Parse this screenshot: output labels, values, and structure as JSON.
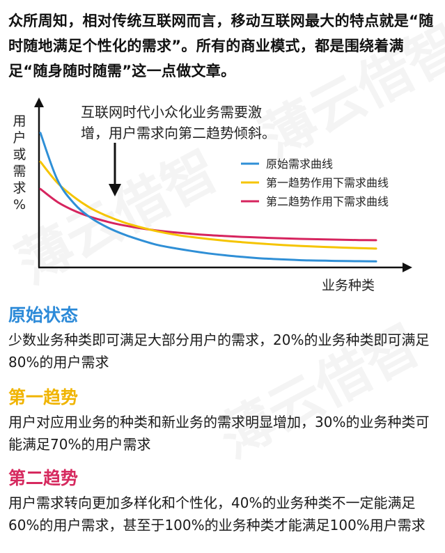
{
  "intro": "众所周知，相对传统互联网而言，移动互联网最大的特点就是“随时随地满足个性化的需求”。所有的商业模式，都是围绕着满足“随身随时随需”这一点做文章。",
  "watermark": "薄云借智",
  "chart_data": {
    "type": "line",
    "title": "",
    "ylabel": "用户或需求%",
    "xlabel": "业务种类",
    "legend_position": "right",
    "annotation": [
      "互联网时代小众化业务需要激",
      "增，用户需求向第二趋势倾斜。"
    ],
    "xlim": [
      0,
      100
    ],
    "ylim": [
      0,
      100
    ],
    "grid": false,
    "x": [
      0,
      5,
      10,
      15,
      20,
      25,
      30,
      35,
      40,
      45,
      50,
      55,
      60,
      65,
      70,
      75,
      80,
      85,
      90,
      95,
      100
    ],
    "series": [
      {
        "name": "原始需求曲线",
        "color": "#2f8fd6",
        "values": [
          84,
          55,
          40,
          31,
          25,
          20.5,
          17,
          14,
          12,
          10.3,
          8.8,
          7.6,
          6.6,
          5.8,
          5.2,
          4.8,
          4.4,
          4.2,
          4.0,
          3.9,
          3.8
        ]
      },
      {
        "name": "第一趋势作用下需求曲线",
        "color": "#f5c400",
        "values": [
          66,
          53,
          44,
          37,
          32,
          28,
          25,
          22.5,
          20.5,
          19,
          17.8,
          16.7,
          15.8,
          15,
          14.3,
          13.7,
          13.2,
          12.8,
          12.4,
          12.1,
          11.8
        ]
      },
      {
        "name": "第二趋势作用下需求曲线",
        "color": "#d6245e",
        "values": [
          49,
          41,
          35.5,
          31.5,
          28.5,
          26.2,
          24.4,
          23,
          21.9,
          21,
          20.2,
          19.6,
          19.1,
          18.7,
          18.3,
          18,
          17.7,
          17.5,
          17.3,
          17.1,
          17
        ]
      }
    ]
  },
  "sections": [
    {
      "title": "原始状态",
      "color": "#2c8ad8",
      "body": "少数业务种类即可满足大部分用户的需求，20%的业务种类即可满足80%的用户需求"
    },
    {
      "title": "第一趋势",
      "color": "#f0b400",
      "body": "用户对应用业务的种类和新业务的需求明显增加，30%的业务种类可能满足70%的用户需求"
    },
    {
      "title": "第二趋势",
      "color": "#d62a5f",
      "body": "用户需求转向更加多样化和个性化，40%的业务种类不一定能满足60%的用户需求，甚至于100%的业务种类才能满足100%用户需求"
    }
  ]
}
